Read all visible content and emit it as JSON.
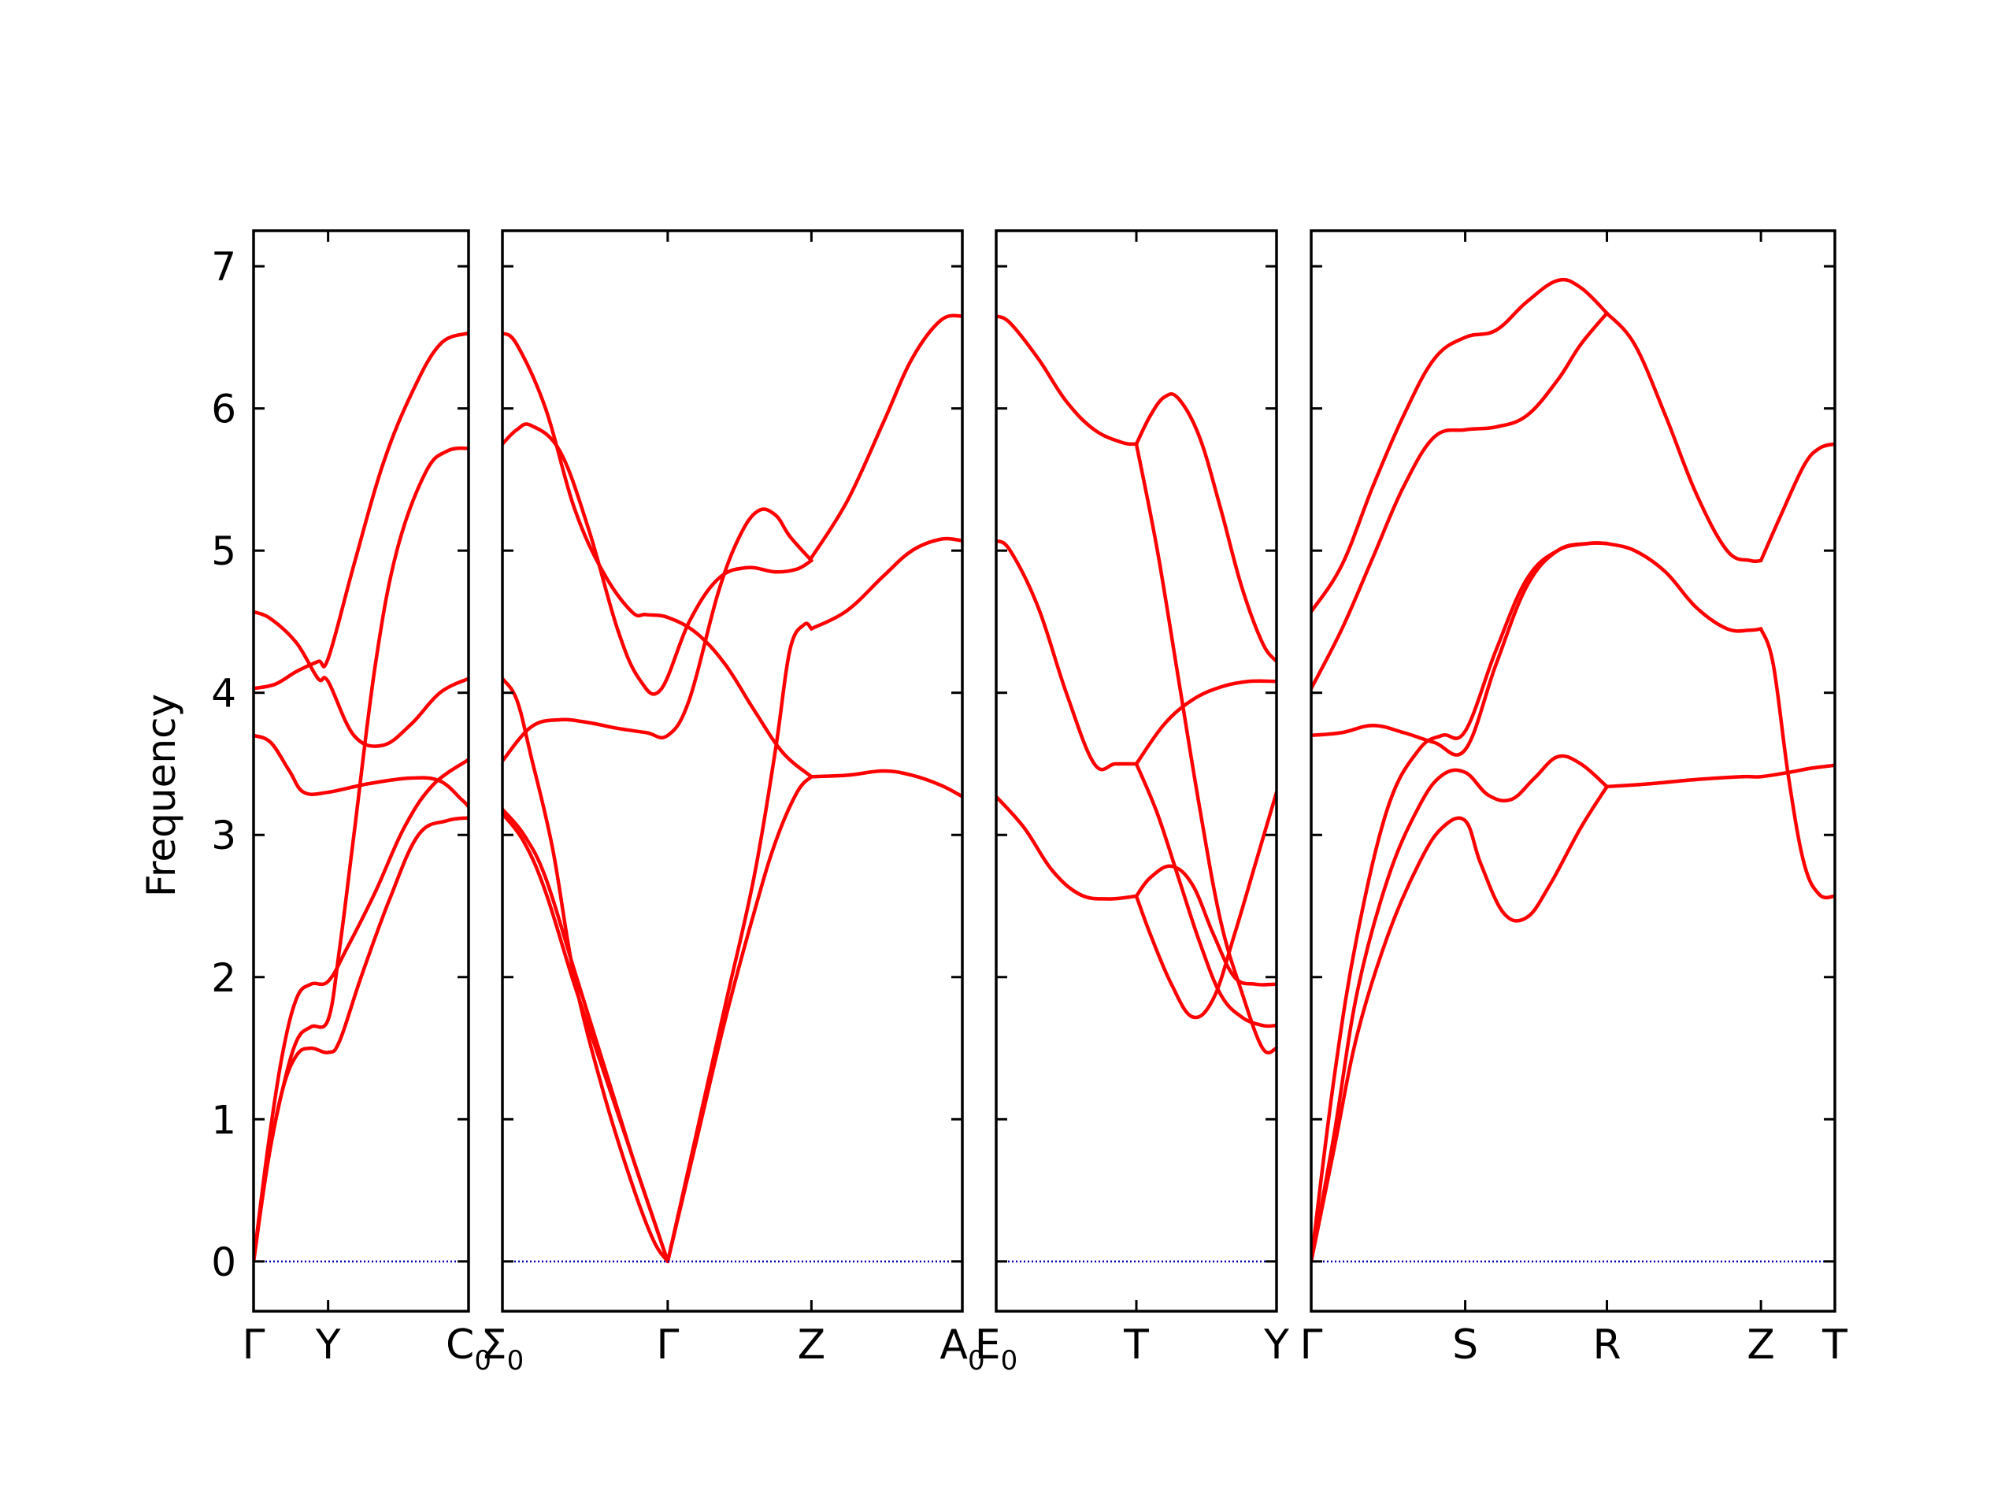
{
  "chart_data": {
    "type": "line",
    "ylabel": "Frequency",
    "ylim": [
      -0.35,
      7.25
    ],
    "yticks": [
      "0",
      "1",
      "2",
      "3",
      "4",
      "5",
      "6",
      "7"
    ],
    "grid": false,
    "band_color": "#ff0000",
    "zero_line_color": "#0000aa",
    "panels": [
      {
        "id": "p1",
        "xlim": [
          0,
          1.5
        ],
        "qpoints": [
          {
            "x": 0,
            "label": "Γ",
            "sub": ""
          },
          {
            "x": 0.52,
            "label": "Y",
            "sub": ""
          },
          {
            "x": 1.5,
            "label": "C",
            "sub": "0"
          }
        ],
        "series": [
          {
            "x": [
              0,
              0.12,
              0.3,
              0.45,
              0.52,
              0.7,
              0.9,
              1.1,
              1.3,
              1.5
            ],
            "y": [
              4.57,
              4.52,
              4.35,
              4.1,
              4.08,
              3.7,
              3.63,
              3.78,
              4.0,
              4.1
            ]
          },
          {
            "x": [
              0,
              0.15,
              0.3,
              0.45,
              0.52,
              0.7,
              0.9,
              1.1,
              1.3,
              1.5
            ],
            "y": [
              4.03,
              4.06,
              4.15,
              4.22,
              4.24,
              4.9,
              5.6,
              6.1,
              6.45,
              6.53
            ]
          },
          {
            "x": [
              0,
              0.12,
              0.25,
              0.35,
              0.52,
              0.8,
              1.1,
              1.3,
              1.45,
              1.5
            ],
            "y": [
              3.7,
              3.65,
              3.45,
              3.3,
              3.3,
              3.36,
              3.4,
              3.38,
              3.25,
              3.2
            ]
          },
          {
            "x": [
              0,
              0.1,
              0.2,
              0.3,
              0.4,
              0.52,
              0.6,
              0.7,
              0.85,
              1.0,
              1.2,
              1.35,
              1.5
            ],
            "y": [
              0,
              0.7,
              1.2,
              1.55,
              1.65,
              1.7,
              2.2,
              3.0,
              4.2,
              5.0,
              5.55,
              5.7,
              5.72
            ]
          },
          {
            "x": [
              0,
              0.1,
              0.2,
              0.3,
              0.4,
              0.52,
              0.65,
              0.85,
              1.05,
              1.25,
              1.5
            ],
            "y": [
              0,
              0.8,
              1.45,
              1.85,
              1.95,
              1.97,
              2.2,
              2.6,
              3.05,
              3.35,
              3.53
            ]
          },
          {
            "x": [
              0,
              0.1,
              0.2,
              0.3,
              0.4,
              0.52,
              0.6,
              0.75,
              0.95,
              1.15,
              1.35,
              1.5
            ],
            "y": [
              0,
              0.7,
              1.2,
              1.45,
              1.5,
              1.47,
              1.55,
              2.0,
              2.55,
              3.0,
              3.1,
              3.12
            ]
          },
          {
            "x": [
              0,
              1.5
            ],
            "y": [
              0,
              0
            ],
            "zero": true
          }
        ]
      },
      {
        "id": "p2",
        "xlim": [
          0,
          3.2
        ],
        "qpoints": [
          {
            "x": 0,
            "label": "Σ",
            "sub": "0"
          },
          {
            "x": 1.15,
            "label": "Γ",
            "sub": ""
          },
          {
            "x": 2.15,
            "label": "Z",
            "sub": ""
          },
          {
            "x": 3.2,
            "label": "A",
            "sub": "0"
          }
        ],
        "series": [
          {
            "x": [
              0,
              0.1,
              0.3,
              0.5,
              0.7,
              0.9,
              1.0,
              1.15,
              1.35,
              1.55,
              1.75,
              1.95,
              2.15
            ],
            "y": [
              6.53,
              6.45,
              6.0,
              5.3,
              4.85,
              4.57,
              4.55,
              4.53,
              4.42,
              4.2,
              3.88,
              3.58,
              3.41
            ]
          },
          {
            "x": [
              0,
              0.1,
              0.2,
              0.4,
              0.6,
              0.8,
              0.95,
              1.1,
              1.3,
              1.5,
              1.7,
              1.9,
              2.05,
              2.15
            ],
            "y": [
              5.75,
              5.85,
              5.88,
              5.7,
              5.15,
              4.45,
              4.1,
              4.02,
              4.5,
              4.8,
              4.88,
              4.85,
              4.87,
              4.93
            ]
          },
          {
            "x": [
              0,
              0.2,
              0.4,
              0.6,
              0.8,
              1.0,
              1.15,
              1.3,
              1.5,
              1.65,
              1.78,
              1.9,
              2.0,
              2.15
            ],
            "y": [
              3.52,
              3.76,
              3.81,
              3.79,
              3.75,
              3.72,
              3.7,
              3.95,
              4.7,
              5.1,
              5.28,
              5.25,
              5.1,
              4.93
            ]
          },
          {
            "x": [
              0,
              0.1,
              0.2,
              0.35,
              0.5,
              0.7,
              0.9,
              1.05,
              1.15
            ],
            "y": [
              4.1,
              3.95,
              3.55,
              2.9,
              2.0,
              1.2,
              0.55,
              0.15,
              0
            ]
          },
          {
            "x": [
              0,
              0.15,
              0.3,
              0.5,
              0.7,
              0.9,
              1.05,
              1.15
            ],
            "y": [
              3.18,
              3.0,
              2.7,
              2.05,
              1.4,
              0.75,
              0.3,
              0
            ]
          },
          {
            "x": [
              0,
              0.15,
              0.3,
              0.5,
              0.7,
              0.9,
              1.05,
              1.15
            ],
            "y": [
              3.15,
              2.95,
              2.6,
              1.95,
              1.35,
              0.75,
              0.3,
              0
            ]
          },
          {
            "x": [
              1.15,
              1.35,
              1.55,
              1.75,
              1.9,
              2.0,
              2.1,
              2.15
            ],
            "y": [
              0,
              0.9,
              1.8,
              2.7,
              3.6,
              4.3,
              4.48,
              4.45
            ]
          },
          {
            "x": [
              1.15,
              1.35,
              1.55,
              1.75,
              1.9,
              2.05,
              2.15
            ],
            "y": [
              0,
              0.85,
              1.7,
              2.45,
              2.95,
              3.3,
              3.41
            ]
          },
          {
            "x": [
              2.15,
              2.4,
              2.65,
              2.85,
              3.05,
              3.2
            ],
            "y": [
              4.95,
              5.35,
              5.9,
              6.35,
              6.62,
              6.65
            ]
          },
          {
            "x": [
              2.15,
              2.4,
              2.65,
              2.85,
              3.05,
              3.2
            ],
            "y": [
              4.45,
              4.58,
              4.82,
              5.0,
              5.08,
              5.07
            ]
          },
          {
            "x": [
              2.15,
              2.4,
              2.65,
              2.85,
              3.05,
              3.2
            ],
            "y": [
              3.41,
              3.42,
              3.45,
              3.42,
              3.35,
              3.27
            ]
          },
          {
            "x": [
              0,
              3.2
            ],
            "y": [
              0,
              0
            ],
            "zero": true
          }
        ]
      },
      {
        "id": "p3",
        "xlim": [
          0,
          2.0
        ],
        "qpoints": [
          {
            "x": 0,
            "label": "E",
            "sub": "0"
          },
          {
            "x": 1.0,
            "label": "T",
            "sub": ""
          },
          {
            "x": 2.0,
            "label": "Y",
            "sub": ""
          }
        ],
        "series": [
          {
            "x": [
              0,
              0.1,
              0.3,
              0.5,
              0.7,
              0.9,
              1.0
            ],
            "y": [
              6.65,
              6.6,
              6.35,
              6.05,
              5.85,
              5.76,
              5.75
            ]
          },
          {
            "x": [
              1.0,
              1.1,
              1.2,
              1.3,
              1.45,
              1.6,
              1.75,
              1.9,
              2.0
            ],
            "y": [
              5.75,
              5.95,
              6.08,
              6.07,
              5.8,
              5.3,
              4.75,
              4.35,
              4.22
            ]
          },
          {
            "x": [
              0,
              0.1,
              0.3,
              0.5,
              0.7,
              0.85,
              1.0
            ],
            "y": [
              5.07,
              5.0,
              4.6,
              4.0,
              3.5,
              3.5,
              3.5
            ]
          },
          {
            "x": [
              1.0,
              1.2,
              1.4,
              1.6,
              1.8,
              2.0
            ],
            "y": [
              3.5,
              3.78,
              3.95,
              4.04,
              4.08,
              4.08
            ]
          },
          {
            "x": [
              0,
              0.2,
              0.4,
              0.6,
              0.8,
              1.0
            ],
            "y": [
              3.27,
              3.05,
              2.75,
              2.58,
              2.55,
              2.57
            ]
          },
          {
            "x": [
              1.0,
              1.15,
              1.3,
              1.45,
              1.6,
              1.75,
              1.9,
              2.0
            ],
            "y": [
              5.75,
              5.0,
              4.1,
              3.2,
              2.4,
              1.9,
              1.5,
              1.5
            ]
          },
          {
            "x": [
              1.0,
              1.15,
              1.3,
              1.45,
              1.6,
              1.75,
              1.9,
              2.0
            ],
            "y": [
              3.5,
              3.15,
              2.7,
              2.25,
              1.88,
              1.72,
              1.66,
              1.66
            ]
          },
          {
            "x": [
              1.0,
              1.1,
              1.25,
              1.4,
              1.55,
              1.7,
              1.85,
              2.0
            ],
            "y": [
              2.57,
              2.3,
              1.95,
              1.72,
              1.85,
              2.3,
              2.8,
              3.3
            ]
          },
          {
            "x": [
              1.0,
              1.1,
              1.25,
              1.4,
              1.55,
              1.7,
              1.85,
              2.0
            ],
            "y": [
              2.57,
              2.7,
              2.78,
              2.65,
              2.3,
              2.0,
              1.95,
              1.95
            ]
          },
          {
            "x": [
              0,
              2.0
            ],
            "y": [
              0,
              0
            ],
            "zero": true
          }
        ]
      },
      {
        "id": "p4",
        "xlim": [
          0,
          3.4
        ],
        "qpoints": [
          {
            "x": 0,
            "label": "Γ",
            "sub": ""
          },
          {
            "x": 1.0,
            "label": "S",
            "sub": ""
          },
          {
            "x": 1.92,
            "label": "R",
            "sub": ""
          },
          {
            "x": 2.92,
            "label": "Z",
            "sub": ""
          },
          {
            "x": 3.4,
            "label": "T",
            "sub": ""
          }
        ],
        "series": [
          {
            "x": [
              0,
              0.2,
              0.4,
              0.6,
              0.8,
              1.0,
              1.2,
              1.4,
              1.6,
              1.75,
              1.92
            ],
            "y": [
              4.57,
              4.9,
              5.45,
              5.95,
              6.35,
              6.5,
              6.55,
              6.75,
              6.9,
              6.85,
              6.67
            ]
          },
          {
            "x": [
              0,
              0.2,
              0.4,
              0.6,
              0.8,
              1.0,
              1.2,
              1.4,
              1.6,
              1.75,
              1.92
            ],
            "y": [
              4.03,
              4.45,
              4.95,
              5.45,
              5.8,
              5.85,
              5.87,
              5.95,
              6.2,
              6.45,
              6.67
            ]
          },
          {
            "x": [
              1.92,
              2.1,
              2.3,
              2.5,
              2.7,
              2.85,
              2.92
            ],
            "y": [
              6.67,
              6.45,
              5.95,
              5.4,
              5.0,
              4.93,
              4.93
            ]
          },
          {
            "x": [
              2.92,
              3.05,
              3.2,
              3.3,
              3.4
            ],
            "y": [
              4.93,
              5.25,
              5.6,
              5.72,
              5.75
            ]
          },
          {
            "x": [
              0,
              0.2,
              0.4,
              0.6,
              0.8,
              1.0,
              1.2,
              1.4,
              1.6,
              1.8,
              1.92
            ],
            "y": [
              3.7,
              3.72,
              3.77,
              3.72,
              3.65,
              3.6,
              4.2,
              4.75,
              5.0,
              5.05,
              5.05
            ]
          },
          {
            "x": [
              0,
              0.15,
              0.3,
              0.5,
              0.7,
              0.85,
              1.0,
              1.2,
              1.4,
              1.6,
              1.8,
              1.92
            ],
            "y": [
              0,
              1.3,
              2.3,
              3.2,
              3.6,
              3.7,
              3.73,
              4.3,
              4.8,
              5.0,
              5.05,
              5.05
            ]
          },
          {
            "x": [
              1.92,
              2.1,
              2.3,
              2.5,
              2.7,
              2.85,
              2.92
            ],
            "y": [
              5.05,
              5.0,
              4.85,
              4.6,
              4.45,
              4.44,
              4.45
            ]
          },
          {
            "x": [
              2.92,
              3.0,
              3.1,
              3.2,
              3.3,
              3.4
            ],
            "y": [
              4.45,
              4.2,
              3.4,
              2.8,
              2.58,
              2.57
            ]
          },
          {
            "x": [
              0,
              0.15,
              0.3,
              0.5,
              0.7,
              0.85,
              1.0,
              1.15,
              1.3,
              1.45,
              1.6,
              1.75,
              1.92
            ],
            "y": [
              0,
              0.9,
              1.9,
              2.7,
              3.2,
              3.42,
              3.44,
              3.28,
              3.25,
              3.4,
              3.55,
              3.5,
              3.34
            ]
          },
          {
            "x": [
              0,
              0.15,
              0.3,
              0.5,
              0.7,
              0.85,
              1.0,
              1.1,
              1.25,
              1.4,
              1.55,
              1.75,
              1.92
            ],
            "y": [
              0,
              0.8,
              1.6,
              2.3,
              2.8,
              3.05,
              3.1,
              2.8,
              2.45,
              2.42,
              2.65,
              3.05,
              3.34
            ]
          },
          {
            "x": [
              1.92,
              2.2,
              2.5,
              2.8,
              2.92,
              3.1,
              3.25,
              3.4
            ],
            "y": [
              3.34,
              3.36,
              3.39,
              3.41,
              3.41,
              3.44,
              3.47,
              3.49
            ]
          },
          {
            "x": [
              0,
              3.4
            ],
            "y": [
              0,
              0
            ],
            "zero": true
          }
        ]
      }
    ]
  }
}
